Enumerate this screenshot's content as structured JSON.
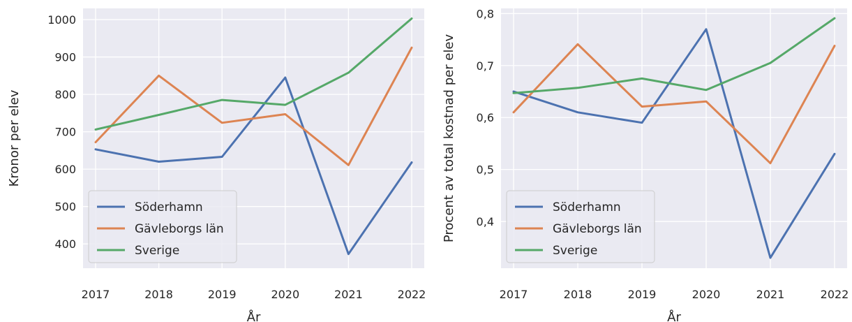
{
  "chart_data": [
    {
      "type": "line",
      "xlabel": "År",
      "ylabel": "Kronor per elev",
      "x": [
        "2017",
        "2018",
        "2019",
        "2020",
        "2021",
        "2022"
      ],
      "ylim": [
        335,
        1030
      ],
      "yticks": [
        "400",
        "500",
        "600",
        "700",
        "800",
        "900",
        "1000"
      ],
      "ytick_values": [
        400,
        500,
        600,
        700,
        800,
        900,
        1000
      ],
      "grid": true,
      "legend_position": "lower-left",
      "series": [
        {
          "name": "Söderhamn",
          "color": "#4c72b0",
          "values": [
            653,
            620,
            633,
            845,
            373,
            618
          ]
        },
        {
          "name": "Gävleborgs län",
          "color": "#dd8452",
          "values": [
            672,
            850,
            724,
            747,
            611,
            925
          ]
        },
        {
          "name": "Sverige",
          "color": "#55a868",
          "values": [
            706,
            745,
            785,
            772,
            858,
            1003
          ]
        }
      ]
    },
    {
      "type": "line",
      "xlabel": "År",
      "ylabel": "Procent av total kostnad per elev",
      "x": [
        "2017",
        "2018",
        "2019",
        "2020",
        "2021",
        "2022"
      ],
      "ylim": [
        0.31,
        0.81
      ],
      "yticks": [
        "0,4",
        "0,5",
        "0,6",
        "0,7",
        "0,8"
      ],
      "ytick_values": [
        0.4,
        0.5,
        0.6,
        0.7,
        0.8
      ],
      "grid": true,
      "legend_position": "lower-left",
      "series": [
        {
          "name": "Söderhamn",
          "color": "#4c72b0",
          "values": [
            0.65,
            0.61,
            0.59,
            0.77,
            0.33,
            0.53
          ]
        },
        {
          "name": "Gävleborgs län",
          "color": "#dd8452",
          "values": [
            0.61,
            0.741,
            0.621,
            0.631,
            0.512,
            0.738
          ]
        },
        {
          "name": "Sverige",
          "color": "#55a868",
          "values": [
            0.647,
            0.657,
            0.675,
            0.653,
            0.705,
            0.791
          ]
        }
      ]
    }
  ]
}
